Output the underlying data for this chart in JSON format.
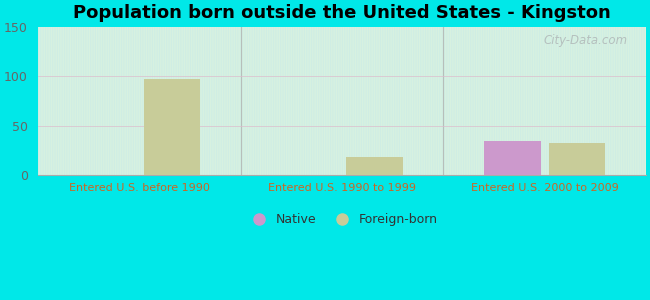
{
  "title": "Population born outside the United States - Kingston",
  "groups": [
    "Entered U.S. before 1990",
    "Entered U.S. 1990 to 1999",
    "Entered U.S. 2000 to 2009"
  ],
  "native_values": [
    0,
    0,
    34
  ],
  "foreign_values": [
    97,
    18,
    32
  ],
  "native_color": "#cc99cc",
  "foreign_color": "#c8cc99",
  "ylim": [
    0,
    150
  ],
  "yticks": [
    0,
    50,
    100,
    150
  ],
  "bar_width": 0.28,
  "fig_bg_color": "#00e8e8",
  "title_fontsize": 13,
  "label_color": "#cc6622",
  "legend_native_label": "Native",
  "legend_foreign_label": "Foreign-born",
  "watermark": "City-Data.com",
  "plot_bg_top": "#c8eae8",
  "plot_bg_bottom": "#dff5dc"
}
